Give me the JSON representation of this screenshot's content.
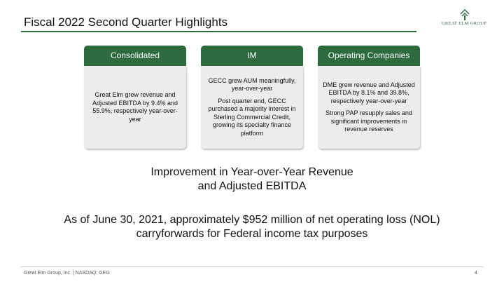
{
  "slide": {
    "title": "Fiscal 2022 Second Quarter Highlights",
    "logo_text": "GREAT ELM GROUP",
    "cards": [
      {
        "header": "Consolidated",
        "paragraphs": [
          "Great Elm grew revenue and Adjusted EBITDA by 9.4% and 55.9%, respectively year-over-year"
        ]
      },
      {
        "header": "IM",
        "paragraphs": [
          "GECC grew AUM meaningfully, year-over-year",
          "Post quarter end, GECC purchased a majority interest in Sterling Commercial Credit, growing its specialty finance platform"
        ]
      },
      {
        "header": "Operating Companies",
        "paragraphs": [
          "DME grew revenue and Adjusted EBITDA by 8.1% and 39.8%, respectively year-over-year",
          "Strong PAP resupply sales and significant improvements in revenue reserves"
        ]
      }
    ],
    "headline_line1": "Improvement in Year-over-Year Revenue",
    "headline_line2": "and Adjusted EBITDA",
    "nol_line1": "As of June 30, 2021, approximately $952 million of net operating loss (NOL)",
    "nol_line2": "carryforwards for Federal income tax purposes",
    "footer": "Great Elm Group, Inc. | NASDAQ: GEG",
    "page_number": "4"
  },
  "colors": {
    "accent_green": "#2d6a3e",
    "card_body": "#ececec"
  }
}
